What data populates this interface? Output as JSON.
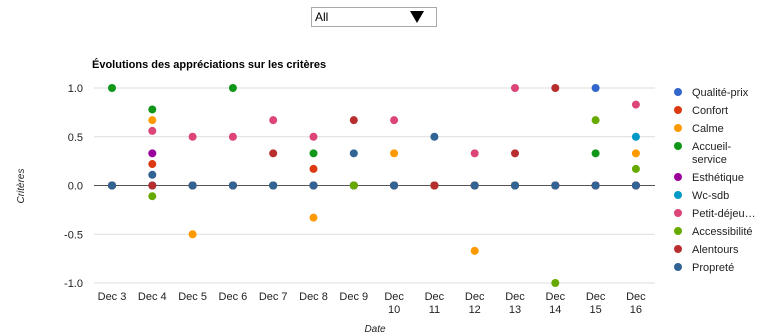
{
  "filter": {
    "selected": "All",
    "arrow_icon": "triangle-down-icon"
  },
  "chart_data": {
    "type": "scatter",
    "title": "Évolutions des appréciations sur les critères",
    "xlabel": "Date",
    "ylabel": "Critères",
    "ylim": [
      -1.0,
      1.0
    ],
    "yticks": [
      "1.0",
      "0.5",
      "0.0",
      "-0.5",
      "-1.0"
    ],
    "grid": true,
    "legend_position": "right",
    "categories": [
      [
        "Dec 3"
      ],
      [
        "Dec 4"
      ],
      [
        "Dec 5"
      ],
      [
        "Dec 6"
      ],
      [
        "Dec 7"
      ],
      [
        "Dec 8"
      ],
      [
        "Dec 9"
      ],
      [
        "Dec",
        "10"
      ],
      [
        "Dec",
        "11"
      ],
      [
        "Dec",
        "12"
      ],
      [
        "Dec",
        "13"
      ],
      [
        "Dec",
        "14"
      ],
      [
        "Dec",
        "15"
      ],
      [
        "Dec",
        "16"
      ]
    ],
    "series": [
      {
        "name": "Qualité-prix",
        "color": "#3366cc",
        "values": [
          0,
          0,
          0,
          0,
          0,
          0,
          0,
          0,
          0,
          0,
          0,
          0,
          1.0,
          0
        ]
      },
      {
        "name": "Confort",
        "color": "#dc3912",
        "values": [
          0,
          0.22,
          0,
          0,
          0,
          0.17,
          0,
          0,
          0,
          0,
          0,
          0,
          0,
          0
        ]
      },
      {
        "name": "Calme",
        "color": "#ff9900",
        "values": [
          0,
          0.67,
          -0.5,
          0,
          0,
          -0.33,
          0,
          0.33,
          0,
          -0.67,
          0,
          0,
          0,
          0.33
        ]
      },
      {
        "name": [
          "Accueil-",
          "service"
        ],
        "color": "#109618",
        "values": [
          1.0,
          0.78,
          0,
          1.0,
          0,
          0.33,
          0,
          0,
          0,
          0,
          0,
          0,
          0.33,
          0
        ]
      },
      {
        "name": "Esthétique",
        "color": "#990099",
        "values": [
          0,
          0.33,
          0,
          0,
          0,
          0,
          0,
          0,
          0,
          0,
          0,
          0,
          0,
          0
        ]
      },
      {
        "name": "Wc-sdb",
        "color": "#0099c6",
        "values": [
          0,
          0,
          0,
          0,
          0,
          0,
          0,
          0,
          0,
          0,
          0,
          0,
          0,
          0.5
        ]
      },
      {
        "name": "Petit-déjeu…",
        "color": "#dd4477",
        "values": [
          0,
          0.56,
          0.5,
          0.5,
          0.67,
          0.5,
          0,
          0.67,
          0,
          0.33,
          1.0,
          0,
          0,
          0.83
        ]
      },
      {
        "name": "Accessibilité",
        "color": "#66aa00",
        "values": [
          0,
          -0.11,
          0,
          0,
          0,
          0,
          0,
          0,
          0,
          0,
          0,
          -1.0,
          0.67,
          0.17
        ]
      },
      {
        "name": "Alentours",
        "color": "#b82e2e",
        "values": [
          0,
          0,
          0,
          0,
          0.33,
          0,
          0.67,
          0,
          0,
          0,
          0.33,
          1.0,
          0,
          0
        ]
      },
      {
        "name": "Propreté",
        "color": "#316395",
        "values": [
          0,
          0.11,
          0,
          0,
          0,
          0,
          0.33,
          0,
          0.5,
          0,
          0,
          0,
          0,
          0
        ]
      }
    ]
  }
}
